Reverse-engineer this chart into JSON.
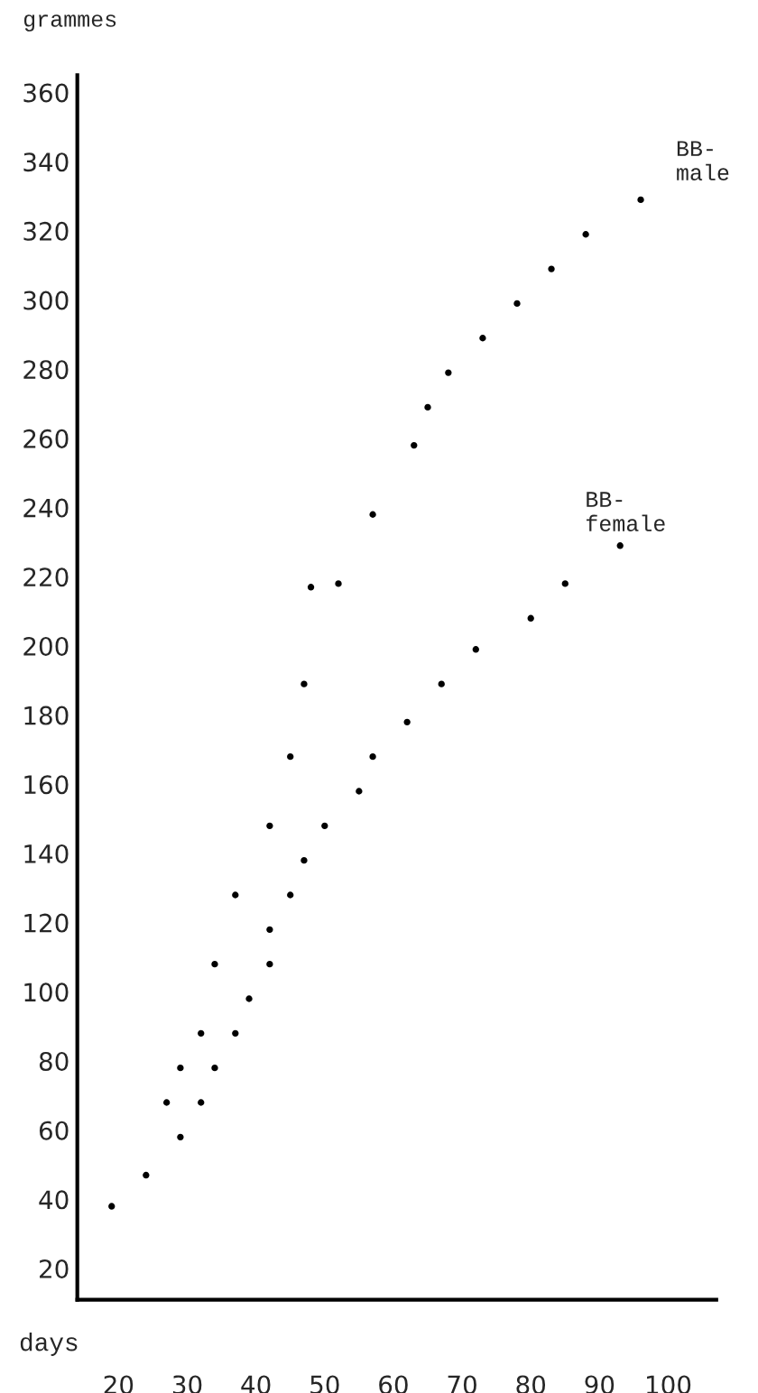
{
  "chart_data": {
    "type": "scatter",
    "xlabel": "days",
    "ylabel": "grammes",
    "xlim": [
      14,
      107
    ],
    "ylim": [
      11,
      365
    ],
    "xticks": [
      20,
      30,
      40,
      50,
      60,
      70,
      80,
      90,
      100
    ],
    "yticks": [
      20,
      40,
      60,
      80,
      100,
      120,
      140,
      160,
      180,
      200,
      220,
      240,
      260,
      280,
      300,
      320,
      340,
      360
    ],
    "grid": false,
    "legend": false,
    "marker": "circle",
    "series": [
      {
        "name": "BB-\nmale",
        "color": "#000000",
        "x": [
          19,
          24,
          27,
          29,
          32,
          34,
          37,
          42,
          45,
          47,
          48,
          52,
          57,
          63,
          65,
          68,
          73,
          78,
          83,
          88,
          96
        ],
        "values": [
          38,
          47,
          68,
          78,
          88,
          108,
          128,
          148,
          168,
          189,
          217,
          218,
          238,
          258,
          269,
          279,
          289,
          299,
          309,
          319,
          329
        ]
      },
      {
        "name": "BB-\nfemale",
        "color": "#000000",
        "x": [
          29,
          32,
          34,
          37,
          39,
          42,
          42,
          45,
          47,
          50,
          55,
          57,
          62,
          67,
          72,
          80,
          85,
          93
        ],
        "values": [
          58,
          68,
          78,
          88,
          98,
          108,
          118,
          128,
          138,
          148,
          158,
          168,
          178,
          189,
          199,
          208,
          218,
          229
        ]
      }
    ]
  }
}
